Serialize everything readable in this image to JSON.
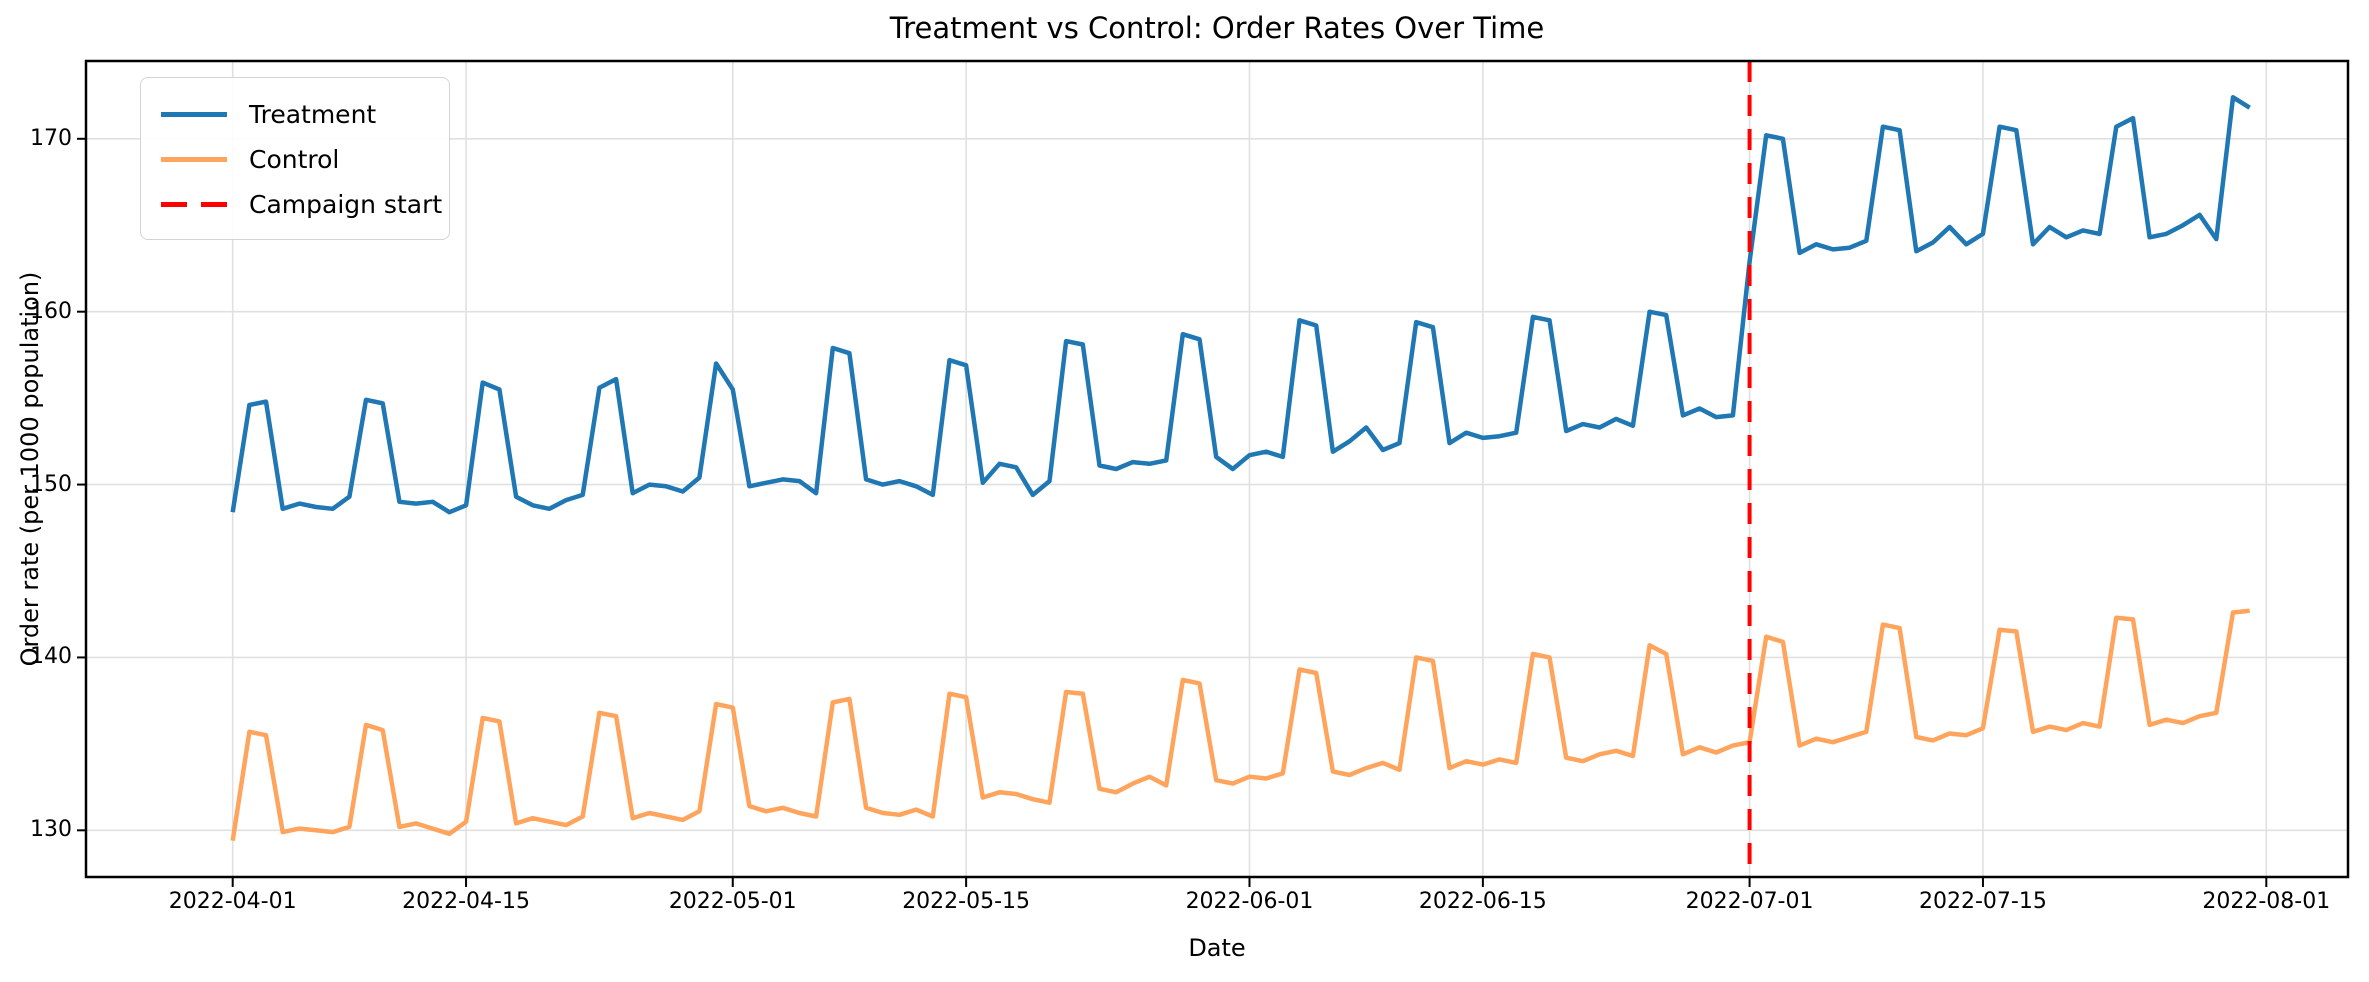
{
  "chart_data": {
    "type": "line",
    "title": "Treatment vs Control: Order Rates Over Time",
    "xlabel": "Date",
    "ylabel": "Order rate (per 1000 population)",
    "grid": true,
    "legend_position": "upper left",
    "ylim": [
      127.3,
      174.5
    ],
    "xlim_days": [
      -8.8,
      126.9
    ],
    "y_ticks": [
      130,
      140,
      150,
      160,
      170
    ],
    "x_ticks": [
      {
        "label": "2022-04-01",
        "day": 0
      },
      {
        "label": "2022-04-15",
        "day": 14
      },
      {
        "label": "2022-05-01",
        "day": 30
      },
      {
        "label": "2022-05-15",
        "day": 44
      },
      {
        "label": "2022-06-01",
        "day": 61
      },
      {
        "label": "2022-06-15",
        "day": 75
      },
      {
        "label": "2022-07-01",
        "day": 91
      },
      {
        "label": "2022-07-15",
        "day": 105
      },
      {
        "label": "2022-08-01",
        "day": 122
      }
    ],
    "legend": {
      "entries": [
        {
          "label": "Treatment",
          "color": "#1f77b4",
          "style": "solid"
        },
        {
          "label": "Control",
          "color": "#ffa45c",
          "style": "solid"
        },
        {
          "label": "Campaign start",
          "color": "#ff0000",
          "style": "dashed"
        }
      ]
    },
    "annotations": [
      {
        "type": "vline",
        "label": "Campaign start",
        "date": "2022-07-01",
        "day": 91,
        "color": "#ff0000",
        "style": "dashed"
      }
    ],
    "dates": [
      "2022-04-01",
      "2022-04-02",
      "2022-04-03",
      "2022-04-04",
      "2022-04-05",
      "2022-04-06",
      "2022-04-07",
      "2022-04-08",
      "2022-04-09",
      "2022-04-10",
      "2022-04-11",
      "2022-04-12",
      "2022-04-13",
      "2022-04-14",
      "2022-04-15",
      "2022-04-16",
      "2022-04-17",
      "2022-04-18",
      "2022-04-19",
      "2022-04-20",
      "2022-04-21",
      "2022-04-22",
      "2022-04-23",
      "2022-04-24",
      "2022-04-25",
      "2022-04-26",
      "2022-04-27",
      "2022-04-28",
      "2022-04-29",
      "2022-04-30",
      "2022-05-01",
      "2022-05-02",
      "2022-05-03",
      "2022-05-04",
      "2022-05-05",
      "2022-05-06",
      "2022-05-07",
      "2022-05-08",
      "2022-05-09",
      "2022-05-10",
      "2022-05-11",
      "2022-05-12",
      "2022-05-13",
      "2022-05-14",
      "2022-05-15",
      "2022-05-16",
      "2022-05-17",
      "2022-05-18",
      "2022-05-19",
      "2022-05-20",
      "2022-05-21",
      "2022-05-22",
      "2022-05-23",
      "2022-05-24",
      "2022-05-25",
      "2022-05-26",
      "2022-05-27",
      "2022-05-28",
      "2022-05-29",
      "2022-05-30",
      "2022-05-31",
      "2022-06-01",
      "2022-06-02",
      "2022-06-03",
      "2022-06-04",
      "2022-06-05",
      "2022-06-06",
      "2022-06-07",
      "2022-06-08",
      "2022-06-09",
      "2022-06-10",
      "2022-06-11",
      "2022-06-12",
      "2022-06-13",
      "2022-06-14",
      "2022-06-15",
      "2022-06-16",
      "2022-06-17",
      "2022-06-18",
      "2022-06-19",
      "2022-06-20",
      "2022-06-21",
      "2022-06-22",
      "2022-06-23",
      "2022-06-24",
      "2022-06-25",
      "2022-06-26",
      "2022-06-27",
      "2022-06-28",
      "2022-06-29",
      "2022-06-30",
      "2022-07-01",
      "2022-07-02",
      "2022-07-03",
      "2022-07-04",
      "2022-07-05",
      "2022-07-06",
      "2022-07-07",
      "2022-07-08",
      "2022-07-09",
      "2022-07-10",
      "2022-07-11",
      "2022-07-12",
      "2022-07-13",
      "2022-07-14",
      "2022-07-15",
      "2022-07-16",
      "2022-07-17",
      "2022-07-18",
      "2022-07-19",
      "2022-07-20",
      "2022-07-21",
      "2022-07-22",
      "2022-07-23",
      "2022-07-24",
      "2022-07-25",
      "2022-07-26",
      "2022-07-27",
      "2022-07-28",
      "2022-07-29",
      "2022-07-30",
      "2022-07-31"
    ],
    "series": [
      {
        "name": "Treatment",
        "color": "#1f77b4",
        "values": [
          148.4,
          154.6,
          154.8,
          148.6,
          148.9,
          148.7,
          148.6,
          149.3,
          154.9,
          154.7,
          149.0,
          148.9,
          149.0,
          148.4,
          148.8,
          155.9,
          155.5,
          149.3,
          148.8,
          148.6,
          149.1,
          149.4,
          155.6,
          156.1,
          149.5,
          150.0,
          149.9,
          149.6,
          150.4,
          157.0,
          155.5,
          149.9,
          150.1,
          150.3,
          150.2,
          149.5,
          157.9,
          157.6,
          150.3,
          150.0,
          150.2,
          149.9,
          149.4,
          157.2,
          156.9,
          150.1,
          151.2,
          151.0,
          149.4,
          150.2,
          158.3,
          158.1,
          151.1,
          150.9,
          151.3,
          151.2,
          151.4,
          158.7,
          158.4,
          151.6,
          150.9,
          151.7,
          151.9,
          151.6,
          159.5,
          159.2,
          151.9,
          152.5,
          153.3,
          152.0,
          152.4,
          159.4,
          159.1,
          152.4,
          153.0,
          152.7,
          152.8,
          153.0,
          159.7,
          159.5,
          153.1,
          153.5,
          153.3,
          153.8,
          153.4,
          160.0,
          159.8,
          154.0,
          154.4,
          153.9,
          154.0,
          162.9,
          170.2,
          170.0,
          163.4,
          163.9,
          163.6,
          163.7,
          164.1,
          170.7,
          170.5,
          163.5,
          164.0,
          164.9,
          163.9,
          164.5,
          170.7,
          170.5,
          163.9,
          164.9,
          164.3,
          164.7,
          164.5,
          170.7,
          171.2,
          164.3,
          164.5,
          165.0,
          165.6,
          164.2,
          172.4,
          171.8
        ]
      },
      {
        "name": "Control",
        "color": "#ffa45c",
        "values": [
          129.4,
          135.7,
          135.5,
          129.9,
          130.1,
          130.0,
          129.9,
          130.2,
          136.1,
          135.8,
          130.2,
          130.4,
          130.1,
          129.8,
          130.5,
          136.5,
          136.3,
          130.4,
          130.7,
          130.5,
          130.3,
          130.8,
          136.8,
          136.6,
          130.7,
          131.0,
          130.8,
          130.6,
          131.1,
          137.3,
          137.1,
          131.4,
          131.1,
          131.3,
          131.0,
          130.8,
          137.4,
          137.6,
          131.3,
          131.0,
          130.9,
          131.2,
          130.8,
          137.9,
          137.7,
          131.9,
          132.2,
          132.1,
          131.8,
          131.6,
          138.0,
          137.9,
          132.4,
          132.2,
          132.7,
          133.1,
          132.6,
          138.7,
          138.5,
          132.9,
          132.7,
          133.1,
          133.0,
          133.3,
          139.3,
          139.1,
          133.4,
          133.2,
          133.6,
          133.9,
          133.5,
          140.0,
          139.8,
          133.6,
          134.0,
          133.8,
          134.1,
          133.9,
          140.2,
          140.0,
          134.2,
          134.0,
          134.4,
          134.6,
          134.3,
          140.7,
          140.2,
          134.4,
          134.8,
          134.5,
          134.9,
          135.1,
          141.2,
          140.9,
          134.9,
          135.3,
          135.1,
          135.4,
          135.7,
          141.9,
          141.7,
          135.4,
          135.2,
          135.6,
          135.5,
          135.9,
          141.6,
          141.5,
          135.7,
          136.0,
          135.8,
          136.2,
          136.0,
          142.3,
          142.2,
          136.1,
          136.4,
          136.2,
          136.6,
          136.8,
          142.6,
          142.7
        ]
      }
    ],
    "style": {
      "grid_color": "#e0e0e0",
      "spine_color": "#000000",
      "line_width": 4.5,
      "background": "#ffffff"
    }
  }
}
